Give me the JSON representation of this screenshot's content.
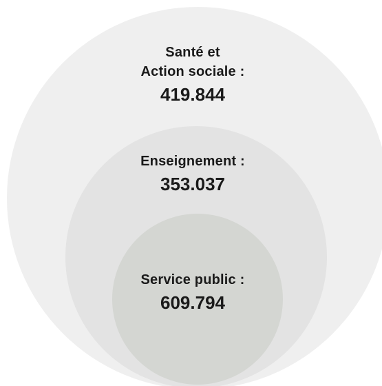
{
  "outer": {
    "label_line1": "Santé et",
    "label_line2": "Action sociale :",
    "value": "419.844"
  },
  "middle": {
    "label": "Enseignement :",
    "value": "353.037"
  },
  "inner": {
    "label": "Service public :",
    "value": "609.794"
  },
  "colors": {
    "outer_circle": "#efefef",
    "middle_circle": "#e3e3e3",
    "inner_circle": "#d4d6d2",
    "text": "#1a1a1a"
  }
}
